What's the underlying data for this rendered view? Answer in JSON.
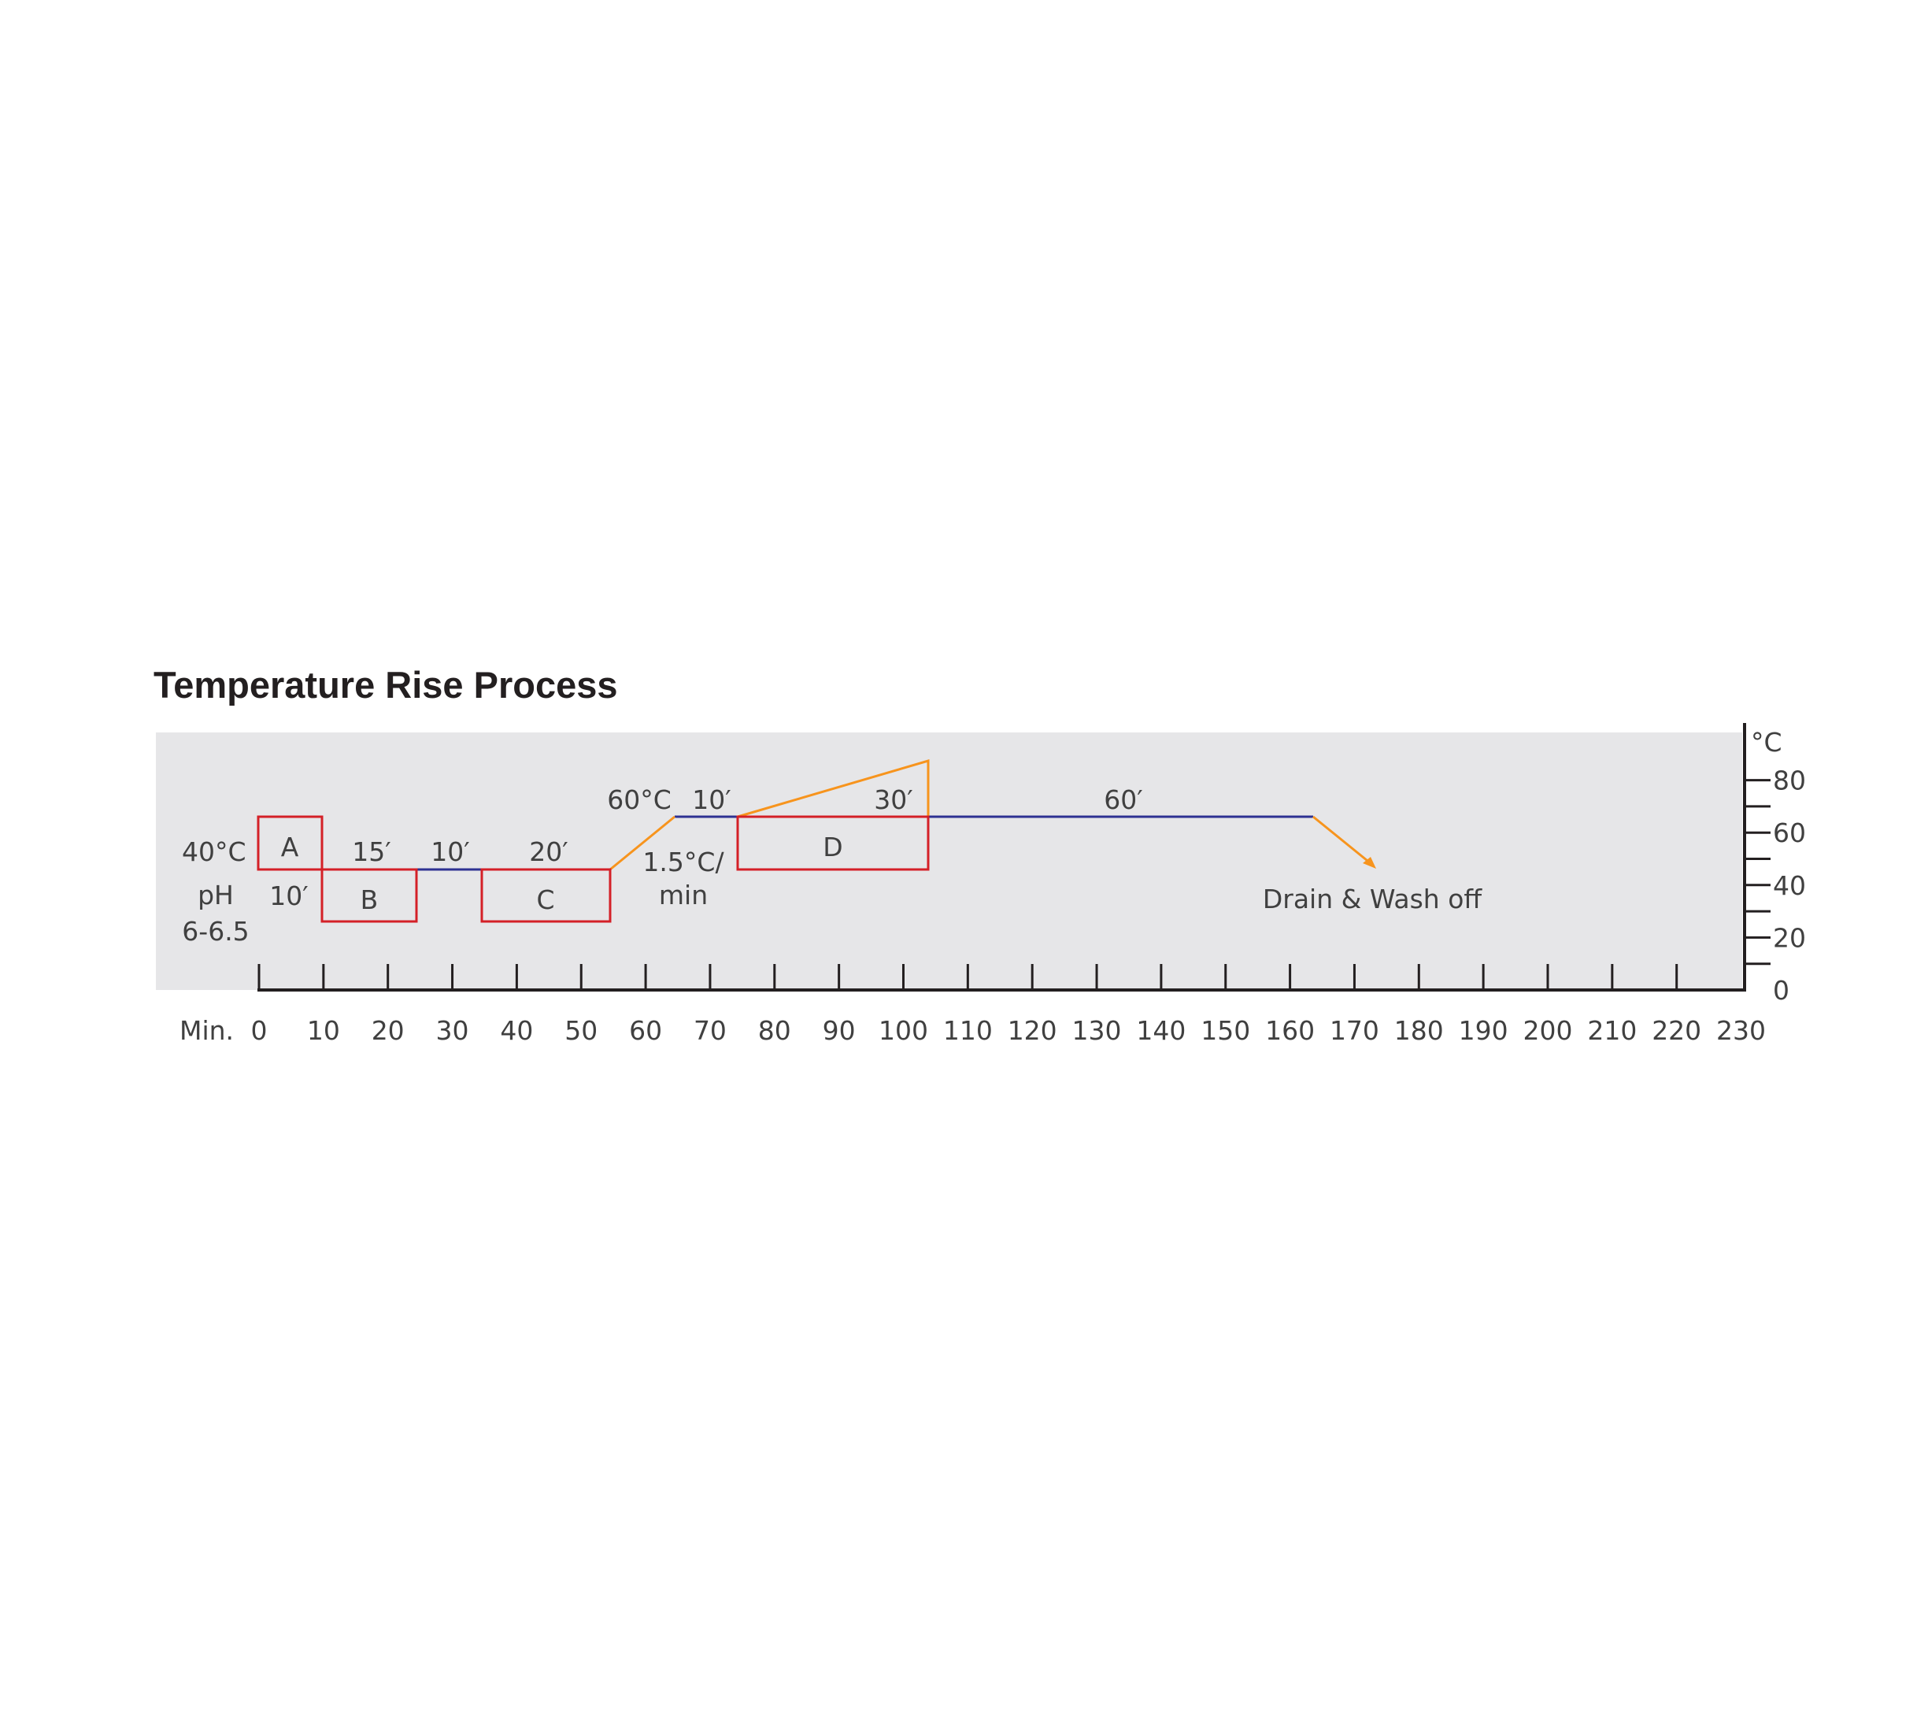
{
  "title": "Temperature Rise Process",
  "x_axis": {
    "prefix": "Min.",
    "ticks": [
      0,
      10,
      20,
      30,
      40,
      50,
      60,
      70,
      80,
      90,
      100,
      110,
      120,
      130,
      140,
      150,
      160,
      170,
      180,
      190,
      200,
      210,
      220,
      230
    ]
  },
  "y_axis": {
    "unit": "°C",
    "ticks": [
      0,
      20,
      40,
      60,
      80
    ]
  },
  "labels": {
    "start_temp": "40°C",
    "ph_label": "pH",
    "ph_value": "6-6.5",
    "step_a_time": "10′",
    "step_b_time": "15′",
    "gap_time": "10′",
    "step_c_time": "20′",
    "hold_temp": "60°C",
    "hold_time": "10′",
    "rate_line1": "1.5°C/",
    "rate_line2": "min",
    "dosing_time": "30′",
    "dyeing_time": "60′",
    "drain": "Drain & Wash off"
  },
  "boxes": {
    "a": "A",
    "b": "B",
    "c": "C",
    "d": "D"
  },
  "colors": {
    "box": "#d42027",
    "hold_line": "#2e3192",
    "ramp_line": "#f7941d",
    "panel": "#e6e6e8",
    "axis": "#231f20"
  }
}
